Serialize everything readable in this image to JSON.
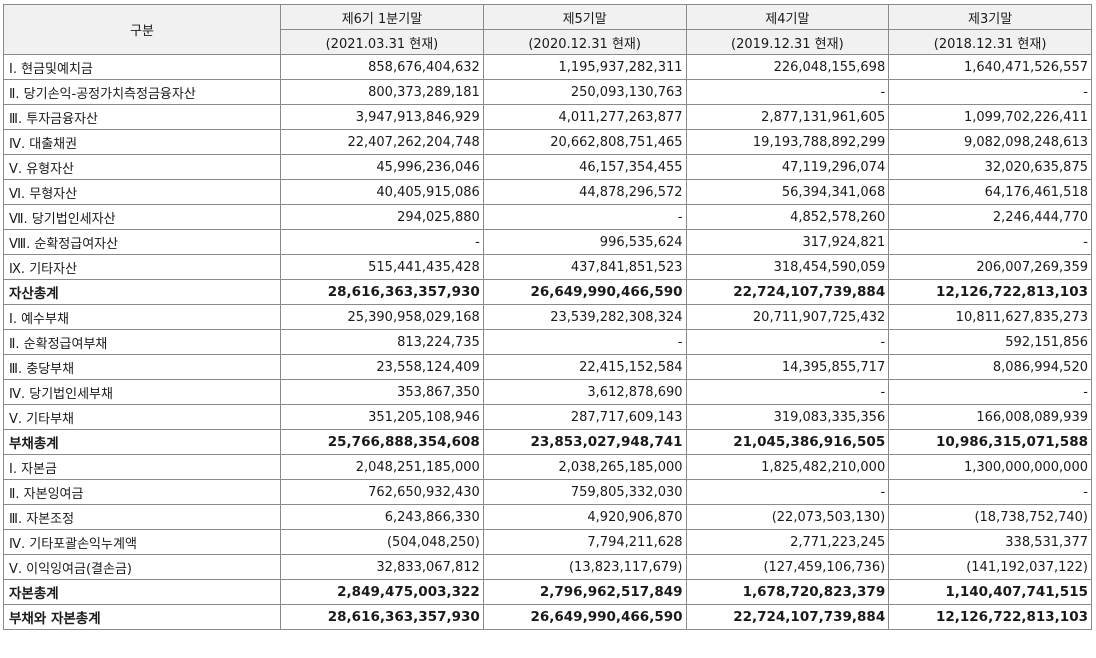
{
  "header": {
    "corner": "구분",
    "periods": [
      {
        "label": "제6기 1분기말",
        "date": "(2021.03.31 현재)"
      },
      {
        "label": "제5기말",
        "date": "(2020.12.31 현재)"
      },
      {
        "label": "제4기말",
        "date": "(2019.12.31 현재)"
      },
      {
        "label": "제3기말",
        "date": "(2018.12.31 현재)"
      }
    ]
  },
  "rows": [
    {
      "label": "Ⅰ. 현금및예치금",
      "values": [
        "858,676,404,632",
        "1,195,937,282,311",
        "226,048,155,698",
        "1,640,471,526,557"
      ]
    },
    {
      "label": "Ⅱ. 당기손익-공정가치측정금융자산",
      "values": [
        "800,373,289,181",
        "250,093,130,763",
        "-",
        "-"
      ]
    },
    {
      "label": "Ⅲ. 투자금융자산",
      "values": [
        "3,947,913,846,929",
        "4,011,277,263,877",
        "2,877,131,961,605",
        "1,099,702,226,411"
      ]
    },
    {
      "label": "Ⅳ. 대출채권",
      "values": [
        "22,407,262,204,748",
        "20,662,808,751,465",
        "19,193,788,892,299",
        "9,082,098,248,613"
      ]
    },
    {
      "label": "Ⅴ. 유형자산",
      "values": [
        "45,996,236,046",
        "46,157,354,455",
        "47,119,296,074",
        "32,020,635,875"
      ]
    },
    {
      "label": "Ⅵ. 무형자산",
      "values": [
        "40,405,915,086",
        "44,878,296,572",
        "56,394,341,068",
        "64,176,461,518"
      ]
    },
    {
      "label": "Ⅶ. 당기법인세자산",
      "values": [
        "294,025,880",
        "-",
        "4,852,578,260",
        "2,246,444,770"
      ]
    },
    {
      "label": "Ⅷ. 순확정급여자산",
      "values": [
        "-",
        "996,535,624",
        "317,924,821",
        "-"
      ]
    },
    {
      "label": "Ⅸ. 기타자산",
      "values": [
        "515,441,435,428",
        "437,841,851,523",
        "318,454,590,059",
        "206,007,269,359"
      ]
    },
    {
      "label": "자산총계",
      "total": true,
      "values": [
        "28,616,363,357,930",
        "26,649,990,466,590",
        "22,724,107,739,884",
        "12,126,722,813,103"
      ]
    },
    {
      "label": "Ⅰ. 예수부채",
      "values": [
        "25,390,958,029,168",
        "23,539,282,308,324",
        "20,711,907,725,432",
        "10,811,627,835,273"
      ]
    },
    {
      "label": "Ⅱ. 순확정급여부채",
      "values": [
        "813,224,735",
        "-",
        "-",
        "592,151,856"
      ]
    },
    {
      "label": "Ⅲ. 충당부채",
      "values": [
        "23,558,124,409",
        "22,415,152,584",
        "14,395,855,717",
        "8,086,994,520"
      ]
    },
    {
      "label": "Ⅳ. 당기법인세부채",
      "values": [
        "353,867,350",
        "3,612,878,690",
        "-",
        "-"
      ]
    },
    {
      "label": "Ⅴ. 기타부채",
      "values": [
        "351,205,108,946",
        "287,717,609,143",
        "319,083,335,356",
        "166,008,089,939"
      ]
    },
    {
      "label": "부채총계",
      "total": true,
      "values": [
        "25,766,888,354,608",
        "23,853,027,948,741",
        "21,045,386,916,505",
        "10,986,315,071,588"
      ]
    },
    {
      "label": "Ⅰ. 자본금",
      "values": [
        "2,048,251,185,000",
        "2,038,265,185,000",
        "1,825,482,210,000",
        "1,300,000,000,000"
      ]
    },
    {
      "label": "Ⅱ. 자본잉여금",
      "values": [
        "762,650,932,430",
        "759,805,332,030",
        "-",
        "-"
      ]
    },
    {
      "label": "Ⅲ. 자본조정",
      "values": [
        "6,243,866,330",
        "4,920,906,870",
        "(22,073,503,130)",
        "(18,738,752,740)"
      ]
    },
    {
      "label": "Ⅳ. 기타포괄손익누계액",
      "values": [
        "(504,048,250)",
        "7,794,211,628",
        "2,771,223,245",
        "338,531,377"
      ]
    },
    {
      "label": "Ⅴ. 이익잉여금(결손금)",
      "values": [
        "32,833,067,812",
        "(13,823,117,679)",
        "(127,459,106,736)",
        "(141,192,037,122)"
      ]
    },
    {
      "label": "자본총계",
      "total": true,
      "values": [
        "2,849,475,003,322",
        "2,796,962,517,849",
        "1,678,720,823,379",
        "1,140,407,741,515"
      ]
    },
    {
      "label": "부채와 자본총계",
      "total": true,
      "values": [
        "28,616,363,357,930",
        "26,649,990,466,590",
        "22,724,107,739,884",
        "12,126,722,813,103"
      ]
    }
  ]
}
